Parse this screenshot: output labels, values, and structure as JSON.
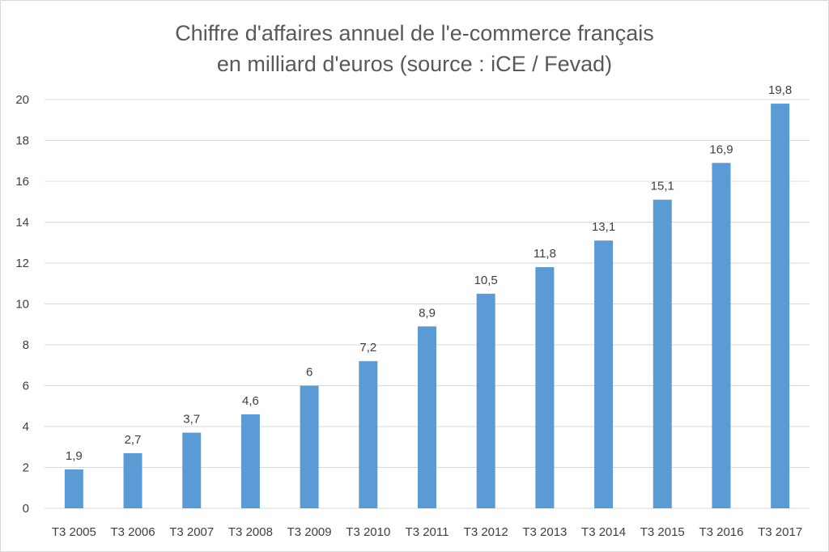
{
  "chart_data": {
    "type": "bar",
    "title": "Chiffre d'affaires annuel de l'e-commerce français",
    "subtitle": "en milliard d'euros (source : iCE / Fevad)",
    "xlabel": "",
    "ylabel": "",
    "categories": [
      "T3 2005",
      "T3 2006",
      "T3 2007",
      "T3 2008",
      "T3 2009",
      "T3 2010",
      "T3 2011",
      "T3 2012",
      "T3 2013",
      "T3 2014",
      "T3 2015",
      "T3 2016",
      "T3 2017"
    ],
    "values": [
      1.9,
      2.7,
      3.7,
      4.6,
      6,
      7.2,
      8.9,
      10.5,
      11.8,
      13.1,
      15.1,
      16.9,
      19.8
    ],
    "value_labels": [
      "1,9",
      "2,7",
      "3,7",
      "4,6",
      "6",
      "7,2",
      "8,9",
      "10,5",
      "11,8",
      "13,1",
      "15,1",
      "16,9",
      "19,8"
    ],
    "ylim": [
      0,
      20
    ],
    "yticks": [
      0,
      2,
      4,
      6,
      8,
      10,
      12,
      14,
      16,
      18,
      20
    ],
    "grid": true,
    "legend": "none",
    "bar_color": "#5b9bd5",
    "grid_color": "#d9d9d9"
  }
}
